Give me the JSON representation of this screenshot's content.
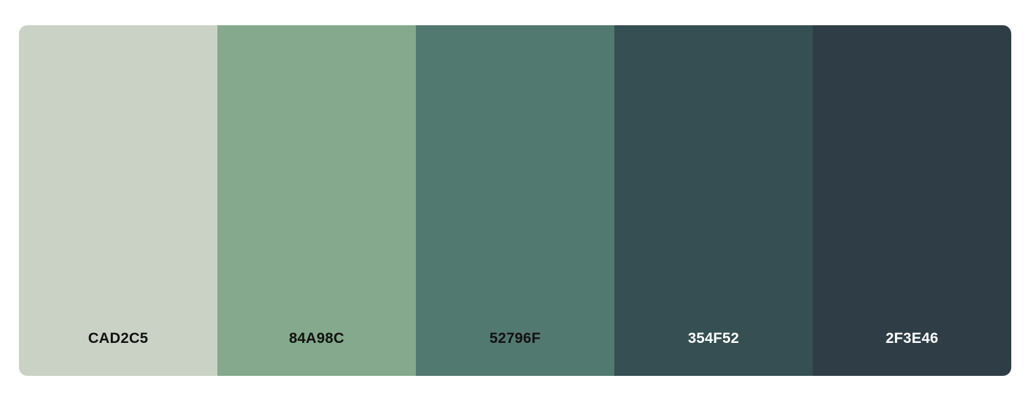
{
  "palette": {
    "swatches": [
      {
        "hex": "CAD2C5",
        "color": "#CAD2C5",
        "text_color": "#111111"
      },
      {
        "hex": "84A98C",
        "color": "#84A98C",
        "text_color": "#111111"
      },
      {
        "hex": "52796F",
        "color": "#52796F",
        "text_color": "#111111"
      },
      {
        "hex": "354F52",
        "color": "#354F52",
        "text_color": "#FFFFFF"
      },
      {
        "hex": "2F3E46",
        "color": "#2F3E46",
        "text_color": "#FFFFFF"
      }
    ]
  }
}
